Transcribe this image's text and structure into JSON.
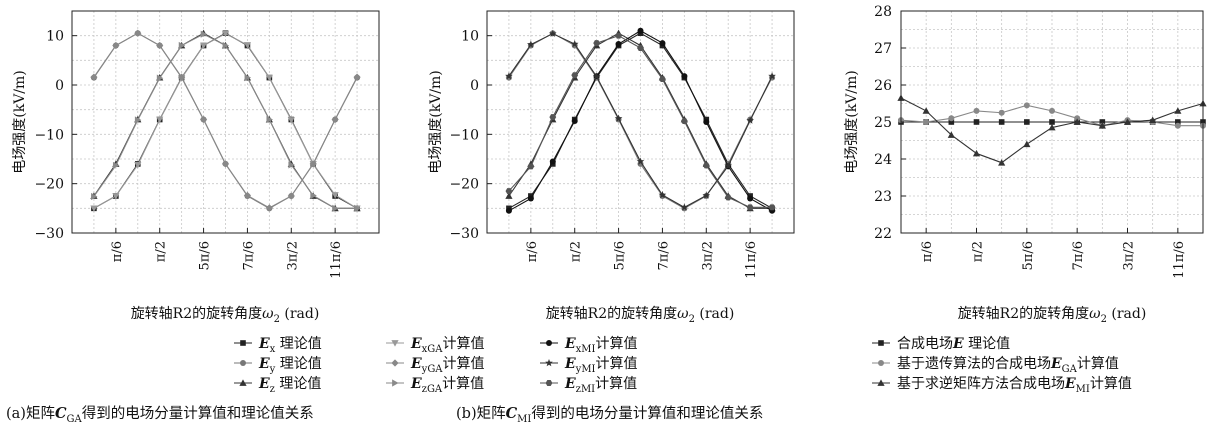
{
  "chart_data": [
    {
      "type": "line",
      "ylabel": "电场强度(kV/m)",
      "xlabel_main": "旋转轴R2的旋转角度",
      "xlabel_var": "ω",
      "xlabel_sub": "2",
      "xlabel_unit": " (rad)",
      "ylim": [
        -30,
        15
      ],
      "yticks": [
        -30,
        -20,
        -10,
        0,
        10
      ],
      "xlim": [
        0,
        6.2832
      ],
      "xticks": [
        {
          "label": "π/6",
          "value": 0.5236
        },
        {
          "label": "π/2",
          "value": 1.5708
        },
        {
          "label": "5π/6",
          "value": 2.618
        },
        {
          "label": "7π/6",
          "value": 3.6652
        },
        {
          "label": "3π/2",
          "value": 4.7124
        },
        {
          "label": "11π/6",
          "value": 5.7596
        }
      ],
      "x": [
        0,
        0.5236,
        1.0472,
        1.5708,
        2.0944,
        2.618,
        3.1416,
        3.6652,
        4.1888,
        4.7124,
        5.236,
        5.7596,
        6.2832
      ],
      "series": [
        {
          "name": "Ex 理论值",
          "marker": "square",
          "color": "#222222",
          "values": [
            -25,
            -22.5,
            -16,
            -7,
            1.5,
            8,
            10.5,
            8,
            1.5,
            -7,
            -16,
            -22.5,
            -25
          ]
        },
        {
          "name": "Ey 理论值",
          "marker": "circle",
          "color": "#777777",
          "values": [
            1.5,
            8,
            10.5,
            8,
            1.5,
            -7,
            -16,
            -22.5,
            -25,
            -22.5,
            -16,
            -7,
            1.5
          ]
        },
        {
          "name": "Ez 理论值",
          "marker": "triangle",
          "color": "#333333",
          "values": [
            -22.5,
            -16,
            -7,
            1.5,
            8,
            10.5,
            8,
            1.5,
            -7,
            -16,
            -22.5,
            -25,
            -25
          ]
        },
        {
          "name": "ExGA计算值",
          "marker": "tri-down",
          "color": "#999999",
          "values": [
            -25,
            -22.5,
            -16.2,
            -7,
            1.4,
            8,
            10.4,
            8.1,
            1.5,
            -7.1,
            -16,
            -22.3,
            -25
          ]
        },
        {
          "name": "EyGA计算值",
          "marker": "diamond",
          "color": "#888888",
          "values": [
            1.6,
            8,
            10.5,
            8,
            1.6,
            -7,
            -16,
            -22.4,
            -24.9,
            -22.5,
            -16,
            -7,
            1.6
          ]
        },
        {
          "name": "EzGA计算值",
          "marker": "tri-right",
          "color": "#8a8a8a",
          "values": [
            -22.6,
            -16.3,
            -7.1,
            1.4,
            8,
            10.3,
            8,
            1.5,
            -7,
            -16.2,
            -22.4,
            -25,
            -25
          ]
        }
      ],
      "legend_block": [
        {
          "label_E": "E",
          "label_sub": "x",
          "label_suffix": " 理论值"
        },
        {
          "label_E": "E",
          "label_sub": "y",
          "label_suffix": " 理论值"
        },
        {
          "label_E": "E",
          "label_sub": "z",
          "label_suffix": " 理论值"
        },
        {
          "label_E": "E",
          "label_sub": "xGA",
          "label_suffix": "计算值"
        },
        {
          "label_E": "E",
          "label_sub": "yGA",
          "label_suffix": "计算值"
        },
        {
          "label_E": "E",
          "label_sub": "zGA",
          "label_suffix": "计算值"
        }
      ],
      "caption_prefix": "(a)矩阵",
      "caption_mat": "C",
      "caption_sub": "GA",
      "caption_suffix": "得到的电场分量计算值和理论值关系"
    },
    {
      "type": "line",
      "ylabel": "电场强度(kV/m)",
      "xlabel_main": "旋转轴R2的旋转角度",
      "xlabel_var": "ω",
      "xlabel_sub": "2",
      "xlabel_unit": " (rad)",
      "ylim": [
        -30,
        15
      ],
      "yticks": [
        -30,
        -20,
        -10,
        0,
        10
      ],
      "xlim": [
        0,
        6.2832
      ],
      "xticks": [
        {
          "label": "π/6",
          "value": 0.5236
        },
        {
          "label": "π/2",
          "value": 1.5708
        },
        {
          "label": "5π/6",
          "value": 2.618
        },
        {
          "label": "7π/6",
          "value": 3.6652
        },
        {
          "label": "3π/2",
          "value": 4.7124
        },
        {
          "label": "11π/6",
          "value": 5.7596
        }
      ],
      "x": [
        0,
        0.5236,
        1.0472,
        1.5708,
        2.0944,
        2.618,
        3.1416,
        3.6652,
        4.1888,
        4.7124,
        5.236,
        5.7596,
        6.2832
      ],
      "series": [
        {
          "name": "Ex 理论值",
          "marker": "square",
          "color": "#222222",
          "values": [
            -25,
            -22.5,
            -16,
            -7,
            1.5,
            8,
            10.5,
            8,
            1.5,
            -7,
            -16,
            -22.5,
            -25
          ]
        },
        {
          "name": "Ey 理论值",
          "marker": "circle",
          "color": "#777777",
          "values": [
            1.5,
            8,
            10.5,
            8,
            1.5,
            -7,
            -16,
            -22.5,
            -25,
            -22.5,
            -16,
            -7,
            1.5
          ]
        },
        {
          "name": "Ez 理论值",
          "marker": "triangle",
          "color": "#333333",
          "values": [
            -22.5,
            -16,
            -7,
            1.5,
            8,
            10.5,
            8,
            1.5,
            -7,
            -16,
            -22.5,
            -25,
            -25
          ]
        },
        {
          "name": "ExMI计算值",
          "marker": "circle",
          "color": "#111111",
          "values": [
            -25.5,
            -23,
            -15.5,
            -7.3,
            1.8,
            8.3,
            11,
            8.5,
            1.8,
            -7.5,
            -16.5,
            -23,
            -25.5
          ]
        },
        {
          "name": "EyMI计算值",
          "marker": "star",
          "color": "#333333",
          "values": [
            1.8,
            8.2,
            10.4,
            8.3,
            1.7,
            -6.8,
            -15.5,
            -22.3,
            -24.8,
            -22.4,
            -16.4,
            -7.2,
            1.8
          ]
        },
        {
          "name": "EzMI计算值",
          "marker": "hexagon",
          "color": "#555555",
          "values": [
            -21.5,
            -16.5,
            -6.5,
            2,
            8.5,
            10,
            7.5,
            1.2,
            -7.3,
            -16.3,
            -22.8,
            -24.8,
            -24.8
          ]
        }
      ],
      "legend_block": [
        {
          "label_E": "E",
          "label_sub": "xMI",
          "label_suffix": "计算值"
        },
        {
          "label_E": "E",
          "label_sub": "yMI",
          "label_suffix": "计算值"
        },
        {
          "label_E": "E",
          "label_sub": "zMI",
          "label_suffix": "计算值"
        }
      ],
      "caption_prefix": "(b)矩阵",
      "caption_mat": "C",
      "caption_sub": "MI",
      "caption_suffix": "得到的电场分量计算值和理论值关系"
    },
    {
      "type": "line",
      "ylabel": "电场强度(kV/m)",
      "xlabel_main": "旋转轴R2的旋转角度",
      "xlabel_var": "ω",
      "xlabel_sub": "2",
      "xlabel_unit": " (rad)",
      "ylim": [
        22,
        28
      ],
      "yticks": [
        22,
        23,
        24,
        25,
        26,
        27,
        28
      ],
      "xlim": [
        0,
        6.2832
      ],
      "xticks": [
        {
          "label": "π/6",
          "value": 0.5236
        },
        {
          "label": "π/2",
          "value": 1.5708
        },
        {
          "label": "5π/6",
          "value": 2.618
        },
        {
          "label": "7π/6",
          "value": 3.6652
        },
        {
          "label": "3π/2",
          "value": 4.7124
        },
        {
          "label": "11π/6",
          "value": 5.7596
        }
      ],
      "x": [
        0,
        0.5236,
        1.0472,
        1.5708,
        2.0944,
        2.618,
        3.1416,
        3.6652,
        4.1888,
        4.7124,
        5.236,
        5.7596,
        6.2832
      ],
      "series": [
        {
          "name": "合成电场E 理论值",
          "marker": "square",
          "color": "#222222",
          "values": [
            25,
            25,
            25,
            25,
            25,
            25,
            25,
            25,
            25,
            25,
            25,
            25,
            25
          ]
        },
        {
          "name": "基于遗传算法的合成电场EGA计算值",
          "marker": "circle",
          "color": "#888888",
          "values": [
            25.05,
            25,
            25.1,
            25.3,
            25.25,
            25.45,
            25.3,
            25.1,
            24.9,
            25.05,
            25,
            24.9,
            24.9
          ]
        },
        {
          "name": "基于求逆矩阵方法合成电场EMI计算值",
          "marker": "triangle",
          "color": "#333333",
          "values": [
            25.65,
            25.3,
            24.65,
            24.15,
            23.9,
            24.4,
            24.85,
            25,
            24.9,
            25,
            25.05,
            25.3,
            25.5
          ]
        }
      ],
      "legend_block": [
        {
          "label_pre": "合成电场",
          "label_E": "E",
          "label_sub": "",
          "label_suffix": " 理论值"
        },
        {
          "label_pre": "基于遗传算法的合成电场",
          "label_E": "E",
          "label_sub": "GA",
          "label_suffix": "计算值"
        },
        {
          "label_pre": "基于求逆矩阵方法合成电场",
          "label_E": "E",
          "label_sub": "MI",
          "label_suffix": "计算值"
        }
      ]
    }
  ]
}
